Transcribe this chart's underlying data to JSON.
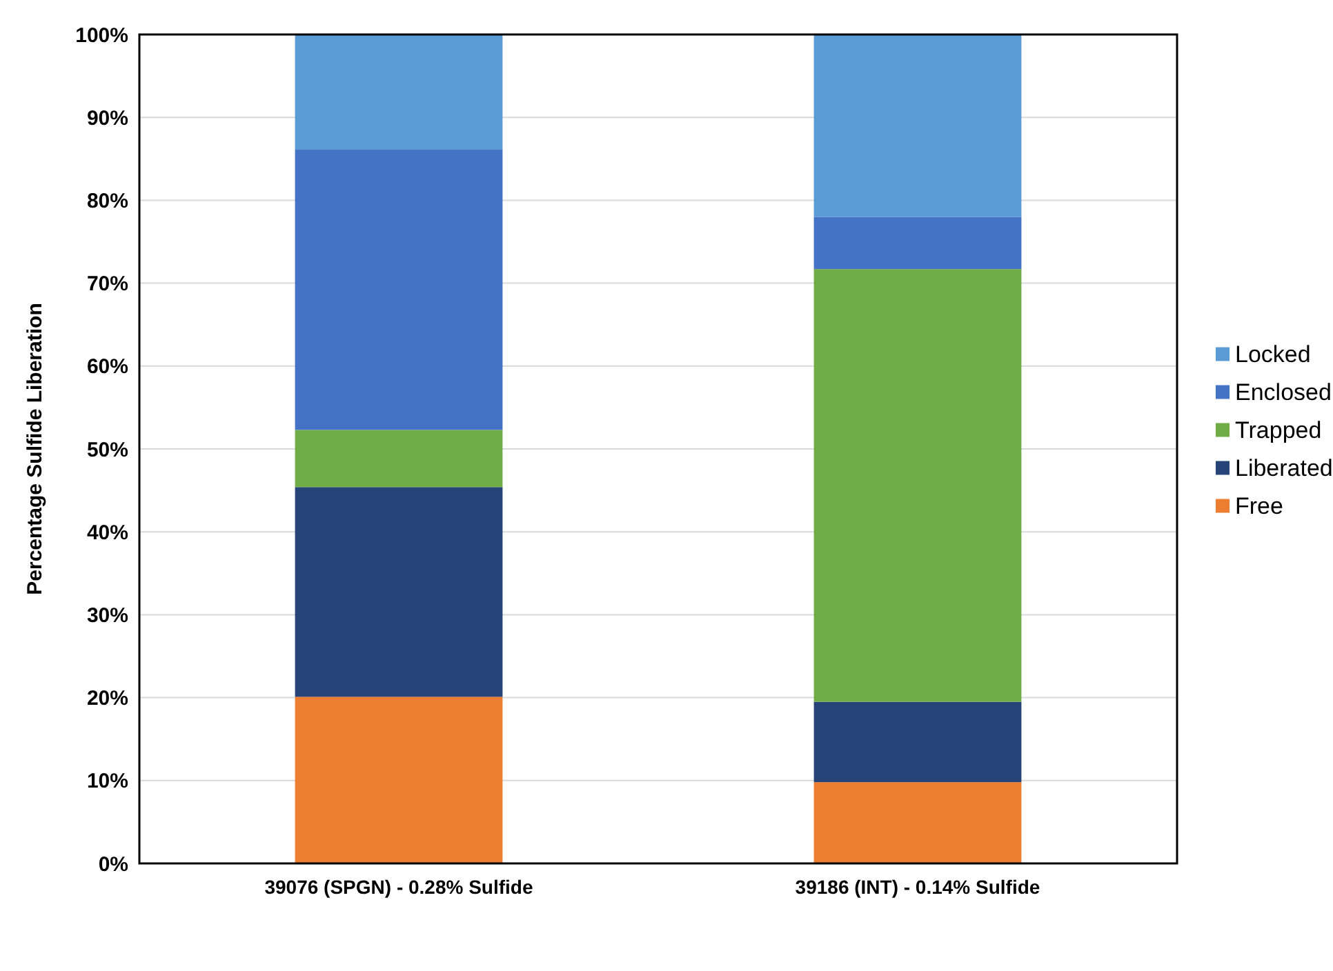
{
  "chart_data": {
    "type": "bar",
    "stacked": true,
    "ylabel": "Percentage Sulfide Liberation",
    "categories": [
      "39076 (SPGN) - 0.28% Sulfide",
      "39186 (INT) - 0.14% Sulfide"
    ],
    "series": [
      {
        "name": "Free",
        "color": "#ed7d31",
        "values": [
          20.1,
          9.8
        ]
      },
      {
        "name": "Liberated",
        "color": "#264478",
        "values": [
          25.3,
          9.7
        ]
      },
      {
        "name": "Trapped",
        "color": "#70ad47",
        "values": [
          6.9,
          52.2
        ]
      },
      {
        "name": "Enclosed",
        "color": "#4472c4",
        "values": [
          33.8,
          6.3
        ]
      },
      {
        "name": "Locked",
        "color": "#5b9bd5",
        "values": [
          13.9,
          22.0
        ]
      }
    ],
    "ylim": [
      0,
      100
    ],
    "yticks": [
      {
        "value": 0,
        "label": "0%"
      },
      {
        "value": 10,
        "label": "10%"
      },
      {
        "value": 20,
        "label": "20%"
      },
      {
        "value": 30,
        "label": "30%"
      },
      {
        "value": 40,
        "label": "40%"
      },
      {
        "value": 50,
        "label": "50%"
      },
      {
        "value": 60,
        "label": "60%"
      },
      {
        "value": 70,
        "label": "70%"
      },
      {
        "value": 80,
        "label": "80%"
      },
      {
        "value": 90,
        "label": "90%"
      },
      {
        "value": 100,
        "label": "100%"
      }
    ],
    "grid": "y",
    "legend": "right"
  }
}
